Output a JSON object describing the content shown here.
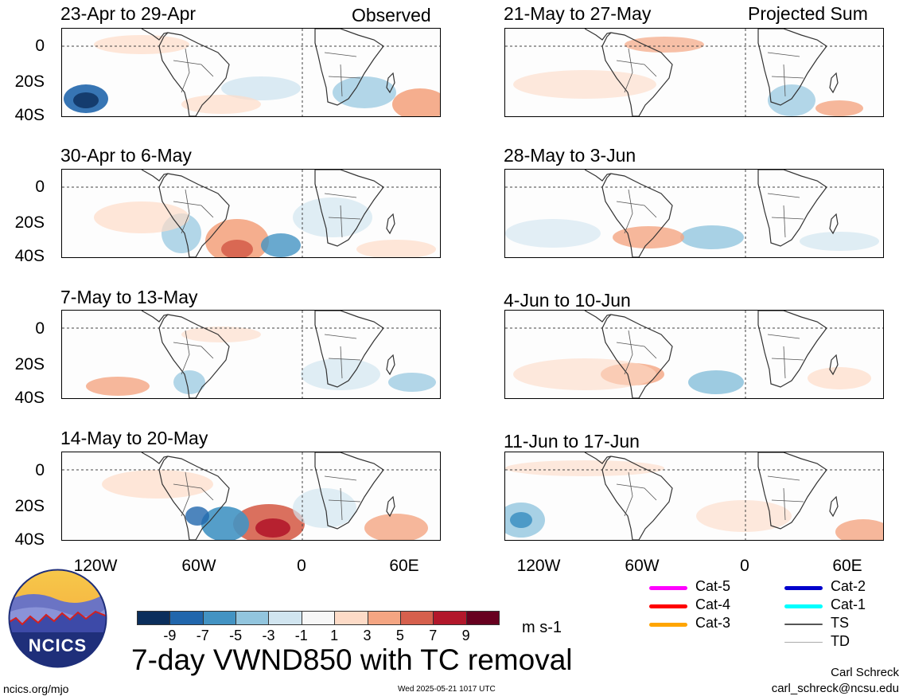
{
  "headers": {
    "left": "Observed",
    "right": "Projected Sum"
  },
  "panels": [
    {
      "title": "23-Apr to 29-Apr",
      "kind": "observed"
    },
    {
      "title": "30-Apr to 6-May",
      "kind": "observed"
    },
    {
      "title": "7-May to 13-May",
      "kind": "observed"
    },
    {
      "title": "14-May to 20-May",
      "kind": "observed"
    },
    {
      "title": "21-May to 27-May",
      "kind": "projected"
    },
    {
      "title": "28-May to 3-Jun",
      "kind": "projected"
    },
    {
      "title": "4-Jun to 10-Jun",
      "kind": "projected"
    },
    {
      "title": "11-Jun to 17-Jun",
      "kind": "projected"
    }
  ],
  "axes": {
    "y_ticks": [
      "0",
      "20S",
      "40S"
    ],
    "x_ticks": [
      "120W",
      "60W",
      "0",
      "60E"
    ]
  },
  "colorbar": {
    "colors": [
      "#0b2e5c",
      "#2166ac",
      "#4393c3",
      "#92c5de",
      "#d1e5f0",
      "#f7f7f7",
      "#fddbc7",
      "#f4a582",
      "#d6604d",
      "#b2182b",
      "#67001f"
    ],
    "labels": [
      "-9",
      "-7",
      "-5",
      "-3",
      "-1",
      "1",
      "3",
      "5",
      "7",
      "9"
    ],
    "units": "m s-1"
  },
  "title": "7-day VWND850 with TC removal",
  "tc_legend": [
    {
      "label": "Cat-5",
      "color": "#ff00ff"
    },
    {
      "label": "Cat-4",
      "color": "#ff0000"
    },
    {
      "label": "Cat-3",
      "color": "#ffa500"
    },
    {
      "label": "Cat-2",
      "color": "#0000cc"
    },
    {
      "label": "Cat-1",
      "color": "#00ffff"
    },
    {
      "label": "TS",
      "color": "#555555"
    },
    {
      "label": "TD",
      "color": "#aaaaaa"
    }
  ],
  "logo": {
    "text": "NCICS"
  },
  "footer": {
    "url": "ncics.org/mjo",
    "timestamp": "Wed 2025-05-21 1017 UTC",
    "author": "Carl Schreck",
    "email": "carl_schreck@ncsu.edu"
  }
}
